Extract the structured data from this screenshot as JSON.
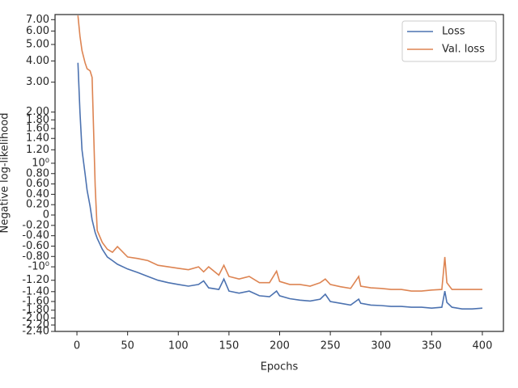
{
  "chart_data": {
    "type": "line",
    "xlabel": "Epochs",
    "ylabel": "Negative log-likelihood",
    "yscale": "symlog",
    "linthresh": 1,
    "x": [
      1,
      3,
      5,
      8,
      10,
      13,
      15,
      18,
      20,
      25,
      30,
      35,
      40,
      50,
      60,
      70,
      80,
      90,
      100,
      110,
      120,
      125,
      130,
      140,
      145,
      150,
      160,
      170,
      180,
      190,
      197,
      200,
      210,
      220,
      230,
      240,
      245,
      250,
      260,
      270,
      278,
      280,
      290,
      300,
      310,
      320,
      330,
      340,
      350,
      360,
      363,
      365,
      370,
      380,
      390,
      400
    ],
    "series": [
      {
        "name": "Loss",
        "color": "#4c72b0",
        "values": [
          3.9,
          2.0,
          1.2,
          0.8,
          0.48,
          0.17,
          -0.09,
          -0.34,
          -0.45,
          -0.66,
          -0.81,
          -0.88,
          -0.95,
          -1.03,
          -1.08,
          -1.14,
          -1.2,
          -1.24,
          -1.27,
          -1.3,
          -1.27,
          -1.21,
          -1.33,
          -1.36,
          -1.18,
          -1.39,
          -1.43,
          -1.39,
          -1.48,
          -1.5,
          -1.39,
          -1.48,
          -1.54,
          -1.57,
          -1.59,
          -1.55,
          -1.45,
          -1.6,
          -1.64,
          -1.68,
          -1.55,
          -1.64,
          -1.68,
          -1.69,
          -1.71,
          -1.71,
          -1.73,
          -1.73,
          -1.75,
          -1.73,
          -1.39,
          -1.62,
          -1.73,
          -1.77,
          -1.77,
          -1.75
        ]
      },
      {
        "name": "Val. loss",
        "color": "#dd8452",
        "values": [
          7.4,
          5.6,
          4.6,
          3.9,
          3.6,
          3.5,
          3.2,
          0.56,
          -0.3,
          -0.53,
          -0.66,
          -0.72,
          -0.61,
          -0.81,
          -0.84,
          -0.88,
          -0.97,
          -1.0,
          -1.02,
          -1.04,
          -1.0,
          -1.07,
          -1.0,
          -1.12,
          -0.97,
          -1.14,
          -1.18,
          -1.14,
          -1.24,
          -1.24,
          -1.06,
          -1.22,
          -1.27,
          -1.27,
          -1.3,
          -1.24,
          -1.18,
          -1.27,
          -1.31,
          -1.34,
          -1.14,
          -1.3,
          -1.33,
          -1.34,
          -1.36,
          -1.36,
          -1.39,
          -1.39,
          -1.37,
          -1.36,
          -0.81,
          -1.24,
          -1.36,
          -1.36,
          -1.36,
          -1.36
        ]
      }
    ],
    "xlim": [
      -21.6,
      420.8
    ],
    "xticks": [
      0,
      50,
      100,
      150,
      200,
      250,
      300,
      350,
      400
    ],
    "ylim": [
      -2.4,
      7.5
    ],
    "yticks": [
      {
        "value": -2.4,
        "label": "-2.40"
      },
      {
        "value": -2.2,
        "label": "-2.20"
      },
      {
        "value": -2.0,
        "label": "-2.00"
      },
      {
        "value": -1.8,
        "label": "-1.80"
      },
      {
        "value": -1.6,
        "label": "-1.60"
      },
      {
        "value": -1.4,
        "label": "-1.40"
      },
      {
        "value": -1.2,
        "label": "-1.20"
      },
      {
        "value": -1,
        "label": "-10⁰"
      },
      {
        "value": -0.8,
        "label": "-0.80"
      },
      {
        "value": -0.6,
        "label": "-0.60"
      },
      {
        "value": -0.4,
        "label": "-0.40"
      },
      {
        "value": -0.2,
        "label": "-0.20"
      },
      0,
      {
        "value": 0.2,
        "label": "0.20"
      },
      {
        "value": 0.4,
        "label": "0.40"
      },
      {
        "value": 0.6,
        "label": "0.60"
      },
      {
        "value": 0.8,
        "label": "0.80"
      },
      {
        "value": 1,
        "label": "10⁰"
      },
      {
        "value": 1.2,
        "label": "1.20"
      },
      {
        "value": 1.4,
        "label": "1.40"
      },
      {
        "value": 1.6,
        "label": "1.60"
      },
      {
        "value": 1.8,
        "label": "1.80"
      },
      {
        "value": 2.0,
        "label": "2.00"
      },
      {
        "value": 3.0,
        "label": "3.00"
      },
      {
        "value": 4.0,
        "label": "4.00"
      },
      {
        "value": 5.0,
        "label": "5.00"
      },
      {
        "value": 6.0,
        "label": "6.00"
      },
      {
        "value": 7.0,
        "label": "7.00"
      }
    ],
    "legend": "upper right",
    "grid": false
  }
}
